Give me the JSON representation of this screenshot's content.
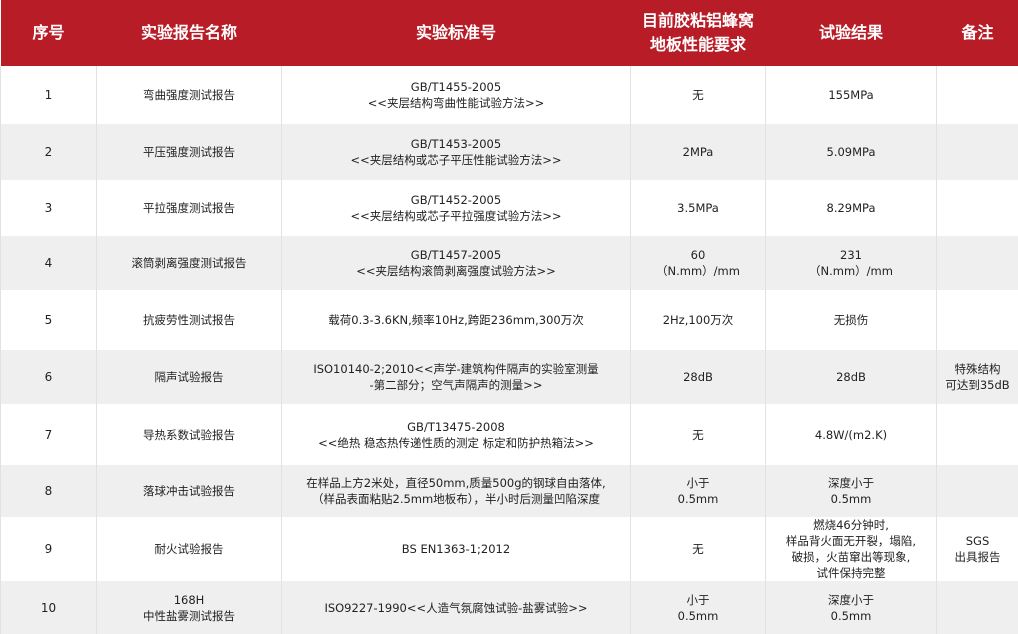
{
  "colors": {
    "header_bg": "#b71c27",
    "row_alt_bg": "#efefef"
  },
  "headers": [
    "序号",
    "实验报告名称",
    "实验标准号",
    "目前胶粘铝蜂窝\n地板性能要求",
    "试验结果",
    "备注"
  ],
  "rows": [
    {
      "no": "1",
      "name": "弯曲强度测试报告",
      "standard": "GB/T1455-2005\n<<夹层结构弯曲性能试验方法>>",
      "requirement": "无",
      "result": "155MPa",
      "note": ""
    },
    {
      "no": "2",
      "name": "平压强度测试报告",
      "standard": "GB/T1453-2005\n<<夹层结构或芯子平压性能试验方法>>",
      "requirement": "2MPa",
      "result": "5.09MPa",
      "note": ""
    },
    {
      "no": "3",
      "name": "平拉强度测试报告",
      "standard": "GB/T1452-2005\n<<夹层结构或芯子平拉强度试验方法>>",
      "requirement": "3.5MPa",
      "result": "8.29MPa",
      "note": ""
    },
    {
      "no": "4",
      "name": "滚筒剥离强度测试报告",
      "standard": "GB/T1457-2005\n<<夹层结构滚筒剥离强度试验方法>>",
      "requirement": "60\n（N.mm）/mm",
      "result": "231\n（N.mm）/mm",
      "note": ""
    },
    {
      "no": "5",
      "name": "抗疲劳性测试报告",
      "standard": "载荷0.3-3.6KN,频率10Hz,跨距236mm,300万次",
      "requirement": "2Hz,100万次",
      "result": "无损伤",
      "note": ""
    },
    {
      "no": "6",
      "name": "隔声试验报告",
      "standard": "ISO10140-2;2010<<声学-建筑构件隔声的实验室测量\n-第二部分；空气声隔声的测量>>",
      "requirement": "28dB",
      "result": "28dB",
      "note": "特殊结构\n可达到35dB"
    },
    {
      "no": "7",
      "name": "导热系数试验报告",
      "standard": "GB/T13475-2008\n<<绝热 稳态热传递性质的测定 标定和防护热箱法>>",
      "requirement": "无",
      "result": "4.8W/(m2.K)",
      "note": ""
    },
    {
      "no": "8",
      "name": "落球冲击试验报告",
      "standard": "在样品上方2米处，直径50mm,质量500g的钢球自由落体,\n（样品表面粘贴2.5mm地板布），半小时后测量凹陷深度",
      "requirement": "小于\n0.5mm",
      "result": "深度小于\n0.5mm",
      "note": ""
    },
    {
      "no": "9",
      "name": "耐火试验报告",
      "standard": "BS EN1363-1;2012",
      "requirement": "无",
      "result": "燃烧46分钟时,\n样品背火面无开裂，塌陷,\n破损，火苗窜出等现象,\n试件保持完整",
      "note": "SGS\n出具报告"
    },
    {
      "no": "10",
      "name": "168H\n中性盐雾测试报告",
      "standard": "ISO9227-1990<<人造气氛腐蚀试验-盐雾试验>>",
      "requirement": "小于\n0.5mm",
      "result": "深度小于\n0.5mm",
      "note": ""
    }
  ]
}
